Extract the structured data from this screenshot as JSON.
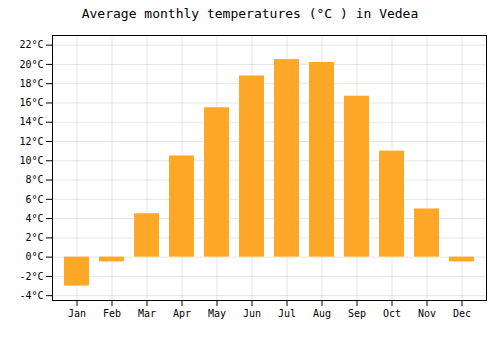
{
  "chart_data": {
    "type": "bar",
    "title": "Average monthly temperatures (°C ) in Vedea",
    "categories": [
      "Jan",
      "Feb",
      "Mar",
      "Apr",
      "May",
      "Jun",
      "Jul",
      "Aug",
      "Sep",
      "Oct",
      "Nov",
      "Dec"
    ],
    "values": [
      -3.0,
      -0.5,
      4.5,
      10.5,
      15.5,
      18.8,
      20.5,
      20.2,
      16.7,
      11.0,
      5.0,
      -0.5
    ],
    "color": "#FFA726",
    "ylim": [
      -4.5,
      23
    ],
    "yticks": [
      {
        "value": -4,
        "label": "-4°C"
      },
      {
        "value": -2,
        "label": "-2°C"
      },
      {
        "value": 0,
        "label": "0°C"
      },
      {
        "value": 2,
        "label": "2°C"
      },
      {
        "value": 4,
        "label": "4°C"
      },
      {
        "value": 6,
        "label": "6°C"
      },
      {
        "value": 8,
        "label": "8°C"
      },
      {
        "value": 10,
        "label": "10°C"
      },
      {
        "value": 12,
        "label": "12°C"
      },
      {
        "value": 14,
        "label": "14°C"
      },
      {
        "value": 16,
        "label": "16°C"
      },
      {
        "value": 18,
        "label": "18°C"
      },
      {
        "value": 20,
        "label": "20°C"
      },
      {
        "value": 22,
        "label": "22°C"
      }
    ],
    "grid": true
  }
}
